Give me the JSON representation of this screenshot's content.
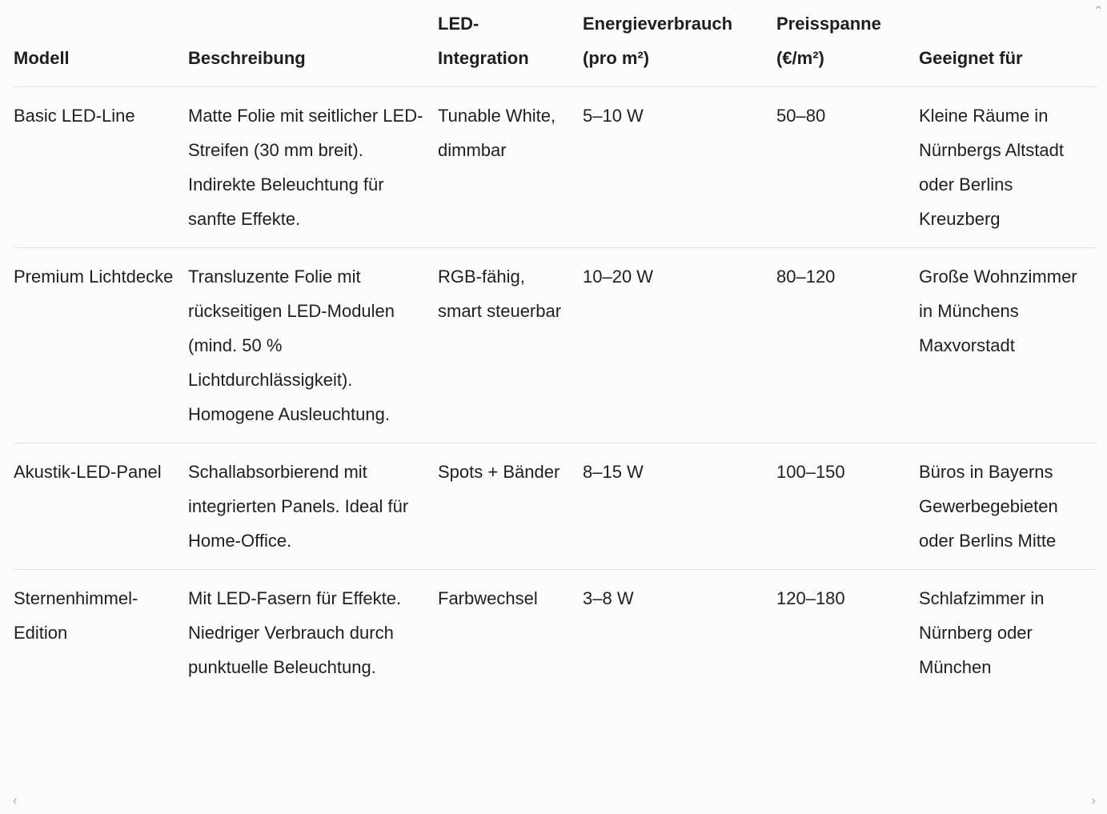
{
  "table": {
    "headers": [
      "Modell",
      "Beschreibung",
      "LED-Integration",
      "Energieverbrauch (pro m²)",
      "Preisspanne (€/m²)",
      "Geeignet für"
    ],
    "rows": [
      [
        "Basic LED-Line",
        "Matte Folie mit seitlicher LED-Streifen (30 mm breit). Indirekte Beleuchtung für sanfte Effekte.",
        "Tunable White, dimmbar",
        "5–10 W",
        "50–80",
        "Kleine Räume in Nürnbergs Altstadt oder Berlins Kreuzberg"
      ],
      [
        "Premium Lichtdecke",
        "Transluzente Folie mit rückseitigen LED-Modulen (mind. 50 % Lichtdurchlässigkeit). Homogene Ausleuchtung.",
        "RGB-fähig, smart steuerbar",
        "10–20 W",
        "80–120",
        "Große Wohnzimmer in Münchens Maxvorstadt"
      ],
      [
        "Akustik-LED-Panel",
        "Schallabsorbierend mit integrierten Panels. Ideal für Home-Office.",
        "Spots + Bänder",
        "8–15 W",
        "100–150",
        "Büros in Bayerns Gewerbegebieten oder Berlins Mitte"
      ],
      [
        "Sternenhimmel-Edition",
        "Mit LED-Fasern für Effekte. Niedriger Verbrauch durch punktuelle Beleuchtung.",
        "Farbwechsel",
        "3–8 W",
        "120–180",
        "Schlafzimmer in Nürnberg oder München"
      ]
    ]
  },
  "scrollbar": {
    "up_icon": "chevron-up-icon",
    "left_icon": "chevron-left-icon",
    "right_icon": "chevron-right-icon"
  }
}
